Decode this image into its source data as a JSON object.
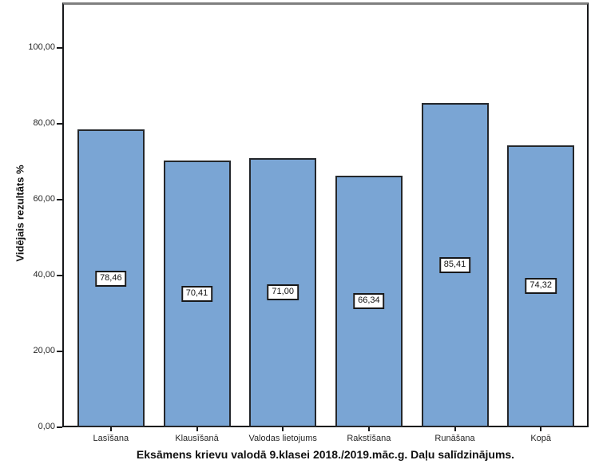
{
  "chart_data": {
    "type": "bar",
    "title": "Eksāmens krievu valodā 9.klasei 2018./2019.māc.g. Daļu salīdzinājums.",
    "ylabel": "Vidējais rezultāts %",
    "xlabel": "",
    "categories": [
      "Lasīšana",
      "Klausīšanā",
      "Valodas lietojums",
      "Rakstīšana",
      "Runāšana",
      "Kopā"
    ],
    "values": [
      78.46,
      70.41,
      71.0,
      66.34,
      85.41,
      74.32
    ],
    "value_labels": [
      "78,46",
      "70,41",
      "71,00",
      "66,34",
      "85,41",
      "74,32"
    ],
    "yticks": [
      0,
      20,
      40,
      60,
      80,
      100
    ],
    "ytick_labels": [
      "0,00",
      "20,00",
      "40,00",
      "60,00",
      "80,00",
      "100,00"
    ],
    "ylim": [
      0,
      112
    ],
    "grid": false,
    "legend": "none",
    "colors": {
      "bar_fill": "#7AA5D4",
      "bar_border": "#24272B",
      "axis": "#17181A",
      "frame_top": "#7F7F7F",
      "text": "#1F1F1F"
    }
  }
}
